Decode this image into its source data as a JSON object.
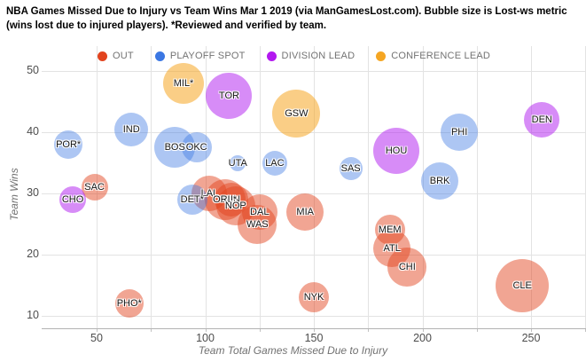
{
  "title": {
    "line1": "NBA Games Missed Due to Injury vs Team Wins Mar 1 2019 (via ManGamesLost.com). Bubble size is Lost-ws metric",
    "line2": "(wins lost due to injured players). *Reviewed and verified by team."
  },
  "chart_data": {
    "type": "scatter",
    "subtype": "bubble",
    "title": "NBA Games Missed Due to Injury vs Team Wins Mar 1 2019 (via ManGamesLost.com). Bubble size is Lost-ws metric (wins lost due to injured players). *Reviewed and verified by team.",
    "xlabel": "Team Total Games Missed Due to Injury",
    "ylabel": "Team Wins",
    "xlim": [
      25,
      275
    ],
    "ylim": [
      8,
      53
    ],
    "x_ticks": [
      50,
      100,
      150,
      200,
      250
    ],
    "y_ticks": [
      10,
      20,
      30,
      40,
      50
    ],
    "x_grid_step": 25,
    "grid": true,
    "legend_position": "top",
    "size_note": "bubble radius px encodes Lost-ws metric (values not labeled on chart)",
    "series": [
      {
        "name": "OUT",
        "color": "#e2431e",
        "fill": "rgba(226,67,30,0.48)",
        "points": [
          {
            "team": "SAC",
            "x": 49,
            "y": 31,
            "r": 15
          },
          {
            "team": "PHO*",
            "x": 65,
            "y": 12,
            "r": 16
          },
          {
            "team": "LAL",
            "x": 102,
            "y": 30,
            "r": 20
          },
          {
            "team": "MIN",
            "x": 112,
            "y": 29,
            "r": 19
          },
          {
            "team": "ORL*",
            "x": 109,
            "y": 29,
            "r": 23
          },
          {
            "team": "NOP",
            "x": 114,
            "y": 28,
            "r": 22
          },
          {
            "team": "DAL",
            "x": 125,
            "y": 27,
            "r": 20
          },
          {
            "team": "WAS",
            "x": 124,
            "y": 25,
            "r": 22
          },
          {
            "team": "MIA",
            "x": 146,
            "y": 27,
            "r": 21
          },
          {
            "team": "NYK",
            "x": 150,
            "y": 13,
            "r": 17
          },
          {
            "team": "MEM",
            "x": 185,
            "y": 24,
            "r": 17
          },
          {
            "team": "ATL",
            "x": 186,
            "y": 21,
            "r": 21
          },
          {
            "team": "CHI",
            "x": 193,
            "y": 18,
            "r": 22
          },
          {
            "team": "CLE",
            "x": 246,
            "y": 15,
            "r": 30
          }
        ]
      },
      {
        "name": "PLAYOFF SPOT",
        "color": "#3b77e3",
        "fill": "rgba(59,119,227,0.42)",
        "points": [
          {
            "team": "POR*",
            "x": 37,
            "y": 38,
            "r": 16
          },
          {
            "team": "IND",
            "x": 66,
            "y": 40.5,
            "r": 19
          },
          {
            "team": "BOS",
            "x": 86,
            "y": 37.5,
            "r": 23
          },
          {
            "team": "OKC",
            "x": 96,
            "y": 37.5,
            "r": 17
          },
          {
            "team": "DET*",
            "x": 94,
            "y": 29,
            "r": 17
          },
          {
            "team": "UTA",
            "x": 115,
            "y": 35,
            "r": 9
          },
          {
            "team": "LAC",
            "x": 132,
            "y": 35,
            "r": 14
          },
          {
            "team": "SAS",
            "x": 167,
            "y": 34,
            "r": 13
          },
          {
            "team": "BRK",
            "x": 208,
            "y": 32,
            "r": 21
          },
          {
            "team": "PHI",
            "x": 217,
            "y": 40,
            "r": 21
          }
        ]
      },
      {
        "name": "DIVISION LEAD",
        "color": "#b318f0",
        "fill": "rgba(176,26,240,0.5)",
        "points": [
          {
            "team": "CHO",
            "x": 39,
            "y": 29,
            "r": 15
          },
          {
            "team": "TOR",
            "x": 111,
            "y": 46,
            "r": 26
          },
          {
            "team": "HOU",
            "x": 188,
            "y": 37,
            "r": 26
          },
          {
            "team": "DEN",
            "x": 255,
            "y": 42,
            "r": 20
          }
        ]
      },
      {
        "name": "CONFERENCE LEAD",
        "color": "#f5a623",
        "fill": "rgba(245,166,35,0.55)",
        "points": [
          {
            "team": "MIL*",
            "x": 90,
            "y": 48,
            "r": 23
          },
          {
            "team": "GSW",
            "x": 142,
            "y": 43,
            "r": 27
          }
        ]
      }
    ]
  }
}
